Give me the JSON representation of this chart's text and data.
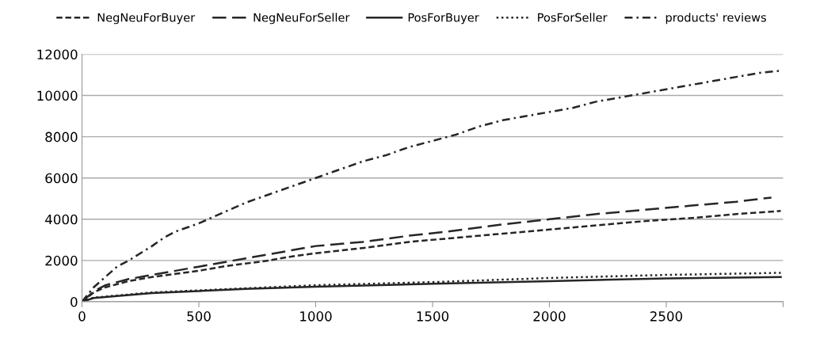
{
  "chart_data": {
    "type": "line",
    "xlim": [
      0,
      3000
    ],
    "xticks": [
      0,
      500,
      1000,
      1500,
      2000,
      2500,
      {
        "value": 3000,
        "label": null
      }
    ],
    "ylim": [
      0,
      12000
    ],
    "yticks": [
      0,
      2000,
      4000,
      6000,
      8000,
      10000,
      12000
    ],
    "grid": "y",
    "legend": "top",
    "marker": "none",
    "series": [
      {
        "name": "NegNeuForBuyer",
        "color": "#262626",
        "line_style": "dashed",
        "x": [
          0,
          50,
          100,
          200,
          300,
          400,
          500,
          600,
          700,
          800,
          900,
          1000,
          1200,
          1400,
          1600,
          1800,
          2000,
          2200,
          2400,
          2600,
          2800,
          2990
        ],
        "values": [
          0,
          450,
          700,
          1000,
          1200,
          1350,
          1500,
          1700,
          1850,
          2000,
          2200,
          2350,
          2600,
          2900,
          3100,
          3300,
          3500,
          3700,
          3900,
          4050,
          4250,
          4400
        ]
      },
      {
        "name": "NegNeuForSeller",
        "color": "#262626",
        "line_style": "longdashed",
        "x": [
          0,
          50,
          100,
          200,
          300,
          400,
          500,
          600,
          700,
          800,
          900,
          1000,
          1200,
          1400,
          1600,
          1800,
          2000,
          2200,
          2400,
          2600,
          2800,
          2950
        ],
        "values": [
          0,
          500,
          800,
          1100,
          1300,
          1500,
          1700,
          1900,
          2100,
          2300,
          2500,
          2700,
          2900,
          3200,
          3450,
          3750,
          4000,
          4250,
          4450,
          4650,
          4850,
          5050
        ]
      },
      {
        "name": "PosForBuyer",
        "color": "#262626",
        "line_style": "solid",
        "x": [
          0,
          50,
          100,
          200,
          300,
          500,
          700,
          1000,
          1500,
          2000,
          2500,
          2990
        ],
        "values": [
          0,
          180,
          230,
          320,
          420,
          520,
          620,
          730,
          870,
          1000,
          1130,
          1200
        ]
      },
      {
        "name": "PosForSeller",
        "color": "#262626",
        "line_style": "dotted",
        "x": [
          0,
          50,
          100,
          200,
          300,
          500,
          700,
          1000,
          1500,
          2000,
          2500,
          2990
        ],
        "values": [
          0,
          200,
          250,
          350,
          450,
          550,
          650,
          800,
          950,
          1150,
          1300,
          1400
        ]
      },
      {
        "name": "products' reviews",
        "color": "#262626",
        "line_style": "dashdot",
        "x": [
          0,
          50,
          100,
          150,
          200,
          300,
          350,
          400,
          500,
          600,
          700,
          800,
          900,
          1000,
          1100,
          1200,
          1300,
          1400,
          1500,
          1600,
          1700,
          1800,
          1900,
          2000,
          2100,
          2200,
          2300,
          2400,
          2500,
          2600,
          2700,
          2800,
          2900,
          2990
        ],
        "values": [
          0,
          700,
          1200,
          1700,
          2000,
          2700,
          3100,
          3400,
          3800,
          4300,
          4800,
          5200,
          5600,
          6000,
          6400,
          6800,
          7100,
          7500,
          7800,
          8100,
          8500,
          8800,
          9000,
          9200,
          9400,
          9700,
          9900,
          10100,
          10300,
          10500,
          10700,
          10900,
          11100,
          11200
        ]
      }
    ]
  }
}
